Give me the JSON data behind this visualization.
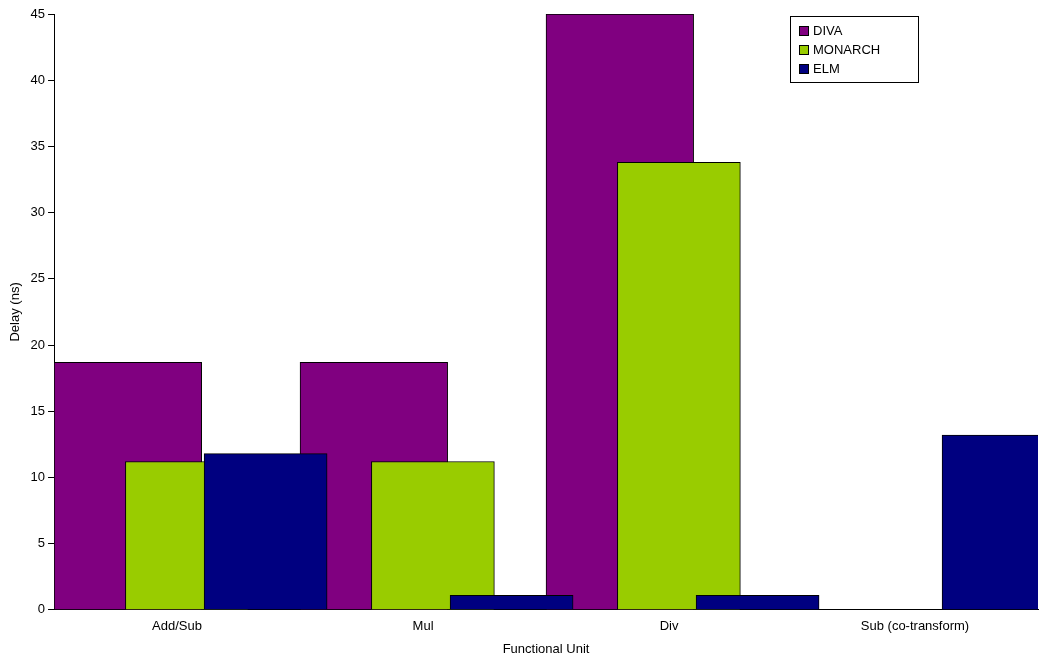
{
  "chart_data": {
    "type": "bar",
    "xlabel": "Functional Unit",
    "ylabel": "Delay (ns)",
    "categories": [
      "Add/Sub",
      "Mul",
      "Div",
      "Sub (co-transform)"
    ],
    "series": [
      {
        "name": "DIVA",
        "color": "#800080",
        "values": [
          18.7,
          18.7,
          45,
          null
        ]
      },
      {
        "name": "MONARCH",
        "color": "#99cc00",
        "values": [
          11.2,
          11.2,
          33.8,
          null
        ]
      },
      {
        "name": "ELM",
        "color": "#000080",
        "values": [
          11.8,
          1.1,
          1.1,
          13.2
        ]
      }
    ],
    "ylim": [
      0,
      45
    ],
    "yticks": [
      0,
      5,
      10,
      15,
      20,
      25,
      30,
      35,
      40,
      45
    ],
    "grid": false,
    "legend": "top right"
  }
}
